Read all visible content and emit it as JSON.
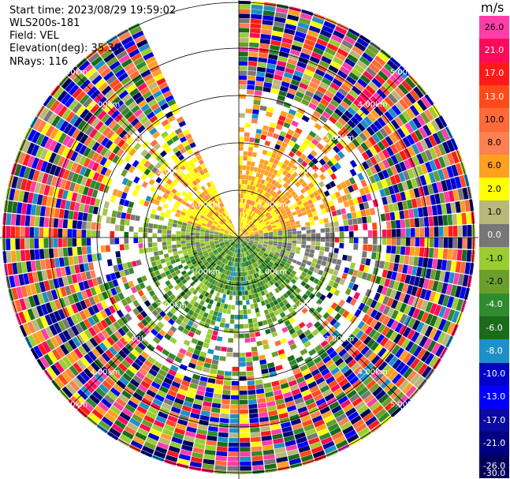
{
  "header": {
    "start_time": "Start time: 2023/08/29 19:59:02",
    "instrument": "WLS200s-181",
    "field": "Field: VEL",
    "elevation": "Elevation(deg): 35.30",
    "nrays": "NRays: 116"
  },
  "colorbar": {
    "unit": "m/s",
    "ticks": [
      "26.0",
      "21.0",
      "17.0",
      "13.0",
      "10.0",
      "8.0",
      "6.0",
      "2.0",
      "1.0",
      "0.0",
      "-1.0",
      "-2.0",
      "-4.0",
      "-6.0",
      "-8.0",
      "-10.0",
      "-13.0",
      "-17.0",
      "-21.0",
      "-26.0",
      "-30.0"
    ],
    "colors": [
      "#ff3da8",
      "#ff0a5a",
      "#ff1a1a",
      "#ff4a1a",
      "#ff6a3a",
      "#ff8050",
      "#ffa020",
      "#ffff00",
      "#b8b878",
      "#777777",
      "#9acd32",
      "#6b9e2a",
      "#2e8b2e",
      "#1b6b1b",
      "#1e90c8",
      "#0000cd",
      "#0000ff",
      "#0a0aa0",
      "#000080",
      "#00005a"
    ]
  },
  "chart_data": {
    "type": "heatmap",
    "projection": "polar (PPI scan)",
    "field": "VEL",
    "units": "m/s",
    "nrays": 116,
    "ring_labels": [
      "1.00km",
      "2.00km",
      "3.00km",
      "4.00km",
      "5.00km"
    ],
    "range_rings_km": [
      1,
      2,
      3,
      4,
      5
    ],
    "color_scale": [
      26.0,
      21.0,
      17.0,
      13.0,
      10.0,
      8.0,
      6.0,
      2.0,
      1.0,
      0.0,
      -1.0,
      -2.0,
      -4.0,
      -6.0,
      -8.0,
      -10.0,
      -13.0,
      -17.0,
      -21.0,
      -26.0,
      -30.0
    ],
    "near_field_pattern": {
      "north_east": "positive (yellow/orange, about 2 to 8 m/s)",
      "east_near": "about 0 to 1 m/s (grey)",
      "south": "negative (green, about -2 to -6 m/s)",
      "west_near": "negative (light green, about -1 to -2 m/s)",
      "north_west": "positive (yellow/orange, about 2 to 8 m/s)"
    },
    "far_field": "noisy, all colours of the scale",
    "gap_sector": "no data between about 335 and 360 degrees"
  }
}
